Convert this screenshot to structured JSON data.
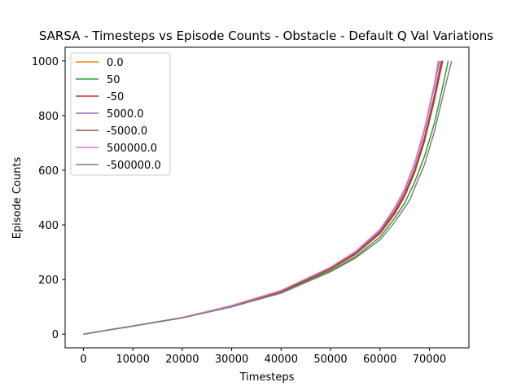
{
  "chart_data": {
    "type": "line",
    "title": "SARSA - Timesteps vs Episode Counts - Obstacle - Default Q Val Variations",
    "xlabel": "Timesteps",
    "ylabel": "Episode Counts",
    "xlim": [
      -3700,
      78000
    ],
    "ylim": [
      -50,
      1050
    ],
    "xticks": [
      0,
      10000,
      20000,
      30000,
      40000,
      50000,
      60000,
      70000
    ],
    "yticks": [
      0,
      200,
      400,
      600,
      800,
      1000
    ],
    "grid": false,
    "legend_position": "upper-left",
    "series": [
      {
        "name": "0.0",
        "color": "#ff7f0e",
        "x": [
          0,
          10000,
          20000,
          30000,
          40000,
          50000,
          55000,
          60000,
          63000,
          65000,
          67000,
          69000,
          71000,
          72600
        ],
        "y": [
          0,
          30,
          60,
          102,
          155,
          238,
          292,
          370,
          445,
          510,
          595,
          710,
          860,
          1000
        ]
      },
      {
        "name": "50",
        "color": "#2ca02c",
        "x": [
          0,
          10000,
          20000,
          30000,
          40000,
          50000,
          55000,
          60000,
          63000,
          65000,
          67000,
          69000,
          71000,
          73000,
          73800
        ],
        "y": [
          0,
          30,
          60,
          100,
          152,
          232,
          283,
          355,
          425,
          480,
          555,
          650,
          770,
          930,
          1000
        ]
      },
      {
        "name": "-50",
        "color": "#d62728",
        "x": [
          0,
          10000,
          20000,
          30000,
          40000,
          50000,
          55000,
          60000,
          63000,
          65000,
          67000,
          69000,
          71000,
          72700
        ],
        "y": [
          0,
          30,
          60,
          102,
          155,
          238,
          292,
          368,
          440,
          505,
          590,
          705,
          855,
          1000
        ]
      },
      {
        "name": "5000.0",
        "color": "#9467bd",
        "x": [
          0,
          10000,
          20000,
          30000,
          40000,
          50000,
          55000,
          60000,
          63000,
          65000,
          67000,
          69000,
          71000,
          72000
        ],
        "y": [
          0,
          30,
          61,
          104,
          158,
          243,
          300,
          380,
          460,
          528,
          620,
          745,
          905,
          1000
        ]
      },
      {
        "name": "-5000.0",
        "color": "#8c564b",
        "x": [
          0,
          10000,
          20000,
          30000,
          40000,
          50000,
          55000,
          60000,
          63000,
          65000,
          67000,
          69000,
          71000,
          72400
        ],
        "y": [
          0,
          30,
          60,
          103,
          156,
          240,
          295,
          373,
          450,
          515,
          602,
          720,
          872,
          1000
        ]
      },
      {
        "name": "500000.0",
        "color": "#e377c2",
        "x": [
          0,
          10000,
          20000,
          30000,
          40000,
          50000,
          55000,
          60000,
          63000,
          65000,
          67000,
          69000,
          71000,
          71800
        ],
        "y": [
          0,
          30,
          61,
          105,
          160,
          245,
          302,
          383,
          463,
          532,
          625,
          752,
          915,
          1000
        ]
      },
      {
        "name": "-500000.0",
        "color": "#7f7f7f",
        "x": [
          0,
          10000,
          20000,
          30000,
          40000,
          50000,
          55000,
          60000,
          63000,
          66000,
          69000,
          71000,
          73000,
          74500
        ],
        "y": [
          0,
          30,
          60,
          100,
          150,
          228,
          278,
          345,
          410,
          490,
          620,
          740,
          890,
          1000
        ]
      }
    ]
  }
}
